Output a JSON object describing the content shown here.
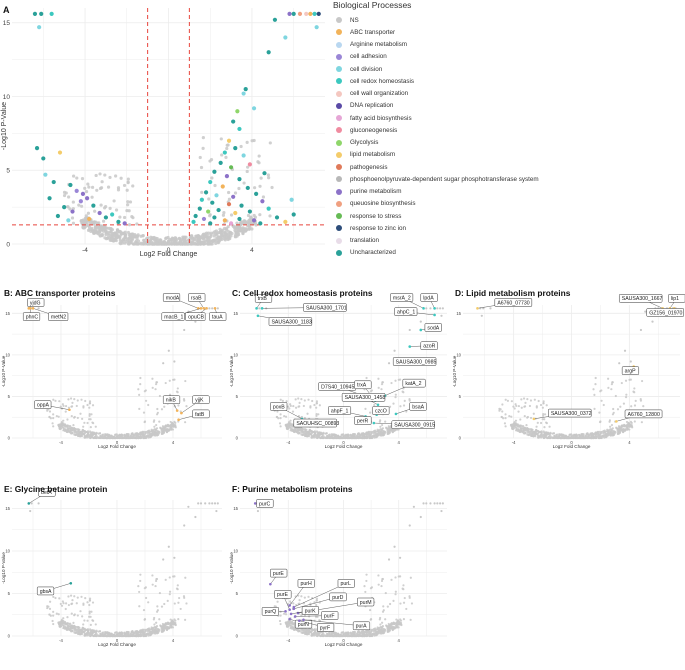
{
  "legend": {
    "title": "Biological Processes",
    "items": [
      {
        "label": "NS",
        "color": "#c8c8c8"
      },
      {
        "label": "ABC transporter",
        "color": "#f2b35a"
      },
      {
        "label": "Arginine metabolism",
        "color": "#b9d7f0"
      },
      {
        "label": "cell adhesion",
        "color": "#9a86d6"
      },
      {
        "label": "cell division",
        "color": "#7fd6e0"
      },
      {
        "label": "cell redox homeostasis",
        "color": "#3cc8bf"
      },
      {
        "label": "cell wall organization",
        "color": "#f4c7c0"
      },
      {
        "label": "DNA replication",
        "color": "#5a4aa6"
      },
      {
        "label": "fatty acid biosynthesis",
        "color": "#e6a6d6"
      },
      {
        "label": "gluconeogenesis",
        "color": "#f08ba0"
      },
      {
        "label": "Glycolysis",
        "color": "#8fd66a"
      },
      {
        "label": "lipid metabolism",
        "color": "#f4cc6a"
      },
      {
        "label": "pathogenesis",
        "color": "#e07a5a"
      },
      {
        "label": "phosphoenolpyruvate-dependent sugar phosphotransferase system",
        "color": "#b8b8b8"
      },
      {
        "label": "purine metabolism",
        "color": "#8c72c8"
      },
      {
        "label": "queuosine biosynthesis",
        "color": "#f0a080"
      },
      {
        "label": "response to stress",
        "color": "#66bb55"
      },
      {
        "label": "response to zinc ion",
        "color": "#2d4d7a"
      },
      {
        "label": "translation",
        "color": "#e8dce8"
      },
      {
        "label": "Uncharacterized",
        "color": "#2aa199"
      }
    ]
  },
  "chart_data": [
    {
      "id": "A",
      "panel_label": "A",
      "type": "scatter",
      "title": "",
      "xlabel": "Log2 Fold Change",
      "ylabel": "-Log10 P-Value",
      "xticks": [
        -4,
        0,
        4
      ],
      "yticks": [
        0,
        5,
        10,
        15
      ],
      "xlim": [
        -7.5,
        7.5
      ],
      "ylim": [
        0,
        16
      ],
      "threshold_x": [
        -1,
        1
      ],
      "threshold_y": 1.3,
      "highlighted": [
        {
          "x": -6.4,
          "y": 15.6,
          "color": "#2aa199"
        },
        {
          "x": -6.2,
          "y": 14.7,
          "color": "#7fd6e0"
        },
        {
          "x": -6.1,
          "y": 15.6,
          "color": "#2aa199"
        },
        {
          "x": -5.6,
          "y": 15.6,
          "color": "#3cc8bf"
        },
        {
          "x": -6.3,
          "y": 6.5,
          "color": "#2aa199"
        },
        {
          "x": -6.0,
          "y": 5.8,
          "color": "#2aa199"
        },
        {
          "x": -5.2,
          "y": 6.2,
          "color": "#f4cc6a"
        },
        {
          "x": -5.9,
          "y": 4.7,
          "color": "#7fd6e0"
        },
        {
          "x": -5.5,
          "y": 4.2,
          "color": "#2aa199"
        },
        {
          "x": -4.7,
          "y": 4.0,
          "color": "#2aa199"
        },
        {
          "x": -4.4,
          "y": 3.6,
          "color": "#9a86d6"
        },
        {
          "x": -4.1,
          "y": 3.4,
          "color": "#8c72c8"
        },
        {
          "x": -3.9,
          "y": 3.1,
          "color": "#8c72c8"
        },
        {
          "x": -4.2,
          "y": 2.9,
          "color": "#9a86d6"
        },
        {
          "x": -5.7,
          "y": 3.1,
          "color": "#2aa199"
        },
        {
          "x": -5.0,
          "y": 2.5,
          "color": "#2aa199"
        },
        {
          "x": -4.6,
          "y": 2.2,
          "color": "#8c72c8"
        },
        {
          "x": -3.6,
          "y": 2.6,
          "color": "#2aa199"
        },
        {
          "x": -3.3,
          "y": 2.1,
          "color": "#8c72c8"
        },
        {
          "x": -3.0,
          "y": 1.8,
          "color": "#2aa199"
        },
        {
          "x": -2.7,
          "y": 2.0,
          "color": "#3cc8bf"
        },
        {
          "x": -4.8,
          "y": 1.6,
          "color": "#7fd6e0"
        },
        {
          "x": -3.8,
          "y": 1.7,
          "color": "#f2b35a"
        },
        {
          "x": -2.4,
          "y": 1.5,
          "color": "#2aa199"
        },
        {
          "x": -2.1,
          "y": 1.4,
          "color": "#8c72c8"
        },
        {
          "x": -5.3,
          "y": 1.9,
          "color": "#2aa199"
        },
        {
          "x": 5.8,
          "y": 15.6,
          "color": "#8c72c8"
        },
        {
          "x": 6.0,
          "y": 15.6,
          "color": "#2aa199"
        },
        {
          "x": 6.3,
          "y": 15.6,
          "color": "#f0a080"
        },
        {
          "x": 6.6,
          "y": 15.6,
          "color": "#f4c7c0"
        },
        {
          "x": 6.8,
          "y": 15.6,
          "color": "#f2b35a"
        },
        {
          "x": 7.0,
          "y": 15.6,
          "color": "#3cc8bf"
        },
        {
          "x": 7.2,
          "y": 15.6,
          "color": "#2d4d7a"
        },
        {
          "x": 7.1,
          "y": 14.7,
          "color": "#7fd6e0"
        },
        {
          "x": 5.1,
          "y": 15.2,
          "color": "#2aa199"
        },
        {
          "x": 5.6,
          "y": 14.0,
          "color": "#7fd6e0"
        },
        {
          "x": 4.8,
          "y": 13.0,
          "color": "#2aa199"
        },
        {
          "x": 3.7,
          "y": 10.5,
          "color": "#2aa199"
        },
        {
          "x": 3.6,
          "y": 10.2,
          "color": "#7fd6e0"
        },
        {
          "x": 4.1,
          "y": 9.2,
          "color": "#7fd6e0"
        },
        {
          "x": 3.3,
          "y": 9.0,
          "color": "#8fd66a"
        },
        {
          "x": 3.1,
          "y": 8.3,
          "color": "#2aa199"
        },
        {
          "x": 3.4,
          "y": 7.8,
          "color": "#3cc8bf"
        },
        {
          "x": 2.9,
          "y": 7.0,
          "color": "#f4cc6a"
        },
        {
          "x": 3.2,
          "y": 6.5,
          "color": "#2aa199"
        },
        {
          "x": 2.7,
          "y": 6.2,
          "color": "#3cc8bf"
        },
        {
          "x": 3.6,
          "y": 6.0,
          "color": "#7fd6e0"
        },
        {
          "x": 2.5,
          "y": 5.5,
          "color": "#2aa199"
        },
        {
          "x": 3.0,
          "y": 5.2,
          "color": "#66bb55"
        },
        {
          "x": 2.2,
          "y": 4.9,
          "color": "#2aa199"
        },
        {
          "x": 2.8,
          "y": 4.6,
          "color": "#8c72c8"
        },
        {
          "x": 3.4,
          "y": 4.4,
          "color": "#2aa199"
        },
        {
          "x": 2.0,
          "y": 4.2,
          "color": "#3cc8bf"
        },
        {
          "x": 2.6,
          "y": 3.9,
          "color": "#f2b35a"
        },
        {
          "x": 3.8,
          "y": 3.8,
          "color": "#2aa199"
        },
        {
          "x": 1.8,
          "y": 3.5,
          "color": "#2aa199"
        },
        {
          "x": 2.3,
          "y": 3.3,
          "color": "#7fd6e0"
        },
        {
          "x": 3.1,
          "y": 3.2,
          "color": "#8c72c8"
        },
        {
          "x": 4.2,
          "y": 3.4,
          "color": "#2aa199"
        },
        {
          "x": 1.6,
          "y": 3.0,
          "color": "#3cc8bf"
        },
        {
          "x": 2.1,
          "y": 2.8,
          "color": "#2aa199"
        },
        {
          "x": 2.9,
          "y": 2.7,
          "color": "#e07a5a"
        },
        {
          "x": 3.5,
          "y": 2.6,
          "color": "#2aa199"
        },
        {
          "x": 4.5,
          "y": 2.9,
          "color": "#8c72c8"
        },
        {
          "x": 1.5,
          "y": 2.4,
          "color": "#2aa199"
        },
        {
          "x": 1.9,
          "y": 2.2,
          "color": "#8fd66a"
        },
        {
          "x": 2.4,
          "y": 2.3,
          "color": "#2aa199"
        },
        {
          "x": 3.2,
          "y": 2.1,
          "color": "#f4cc6a"
        },
        {
          "x": 3.9,
          "y": 2.2,
          "color": "#2aa199"
        },
        {
          "x": 4.8,
          "y": 2.4,
          "color": "#3cc8bf"
        },
        {
          "x": 1.3,
          "y": 1.9,
          "color": "#2aa199"
        },
        {
          "x": 1.7,
          "y": 1.7,
          "color": "#9a86d6"
        },
        {
          "x": 2.2,
          "y": 1.8,
          "color": "#2aa199"
        },
        {
          "x": 2.7,
          "y": 1.6,
          "color": "#f2b35a"
        },
        {
          "x": 3.4,
          "y": 1.7,
          "color": "#2aa199"
        },
        {
          "x": 4.1,
          "y": 1.6,
          "color": "#8c72c8"
        },
        {
          "x": 5.2,
          "y": 1.8,
          "color": "#2aa199"
        },
        {
          "x": 1.2,
          "y": 1.5,
          "color": "#3cc8bf"
        },
        {
          "x": 2.0,
          "y": 1.4,
          "color": "#2aa199"
        },
        {
          "x": 3.0,
          "y": 1.4,
          "color": "#e6a6d6"
        },
        {
          "x": 4.4,
          "y": 1.4,
          "color": "#2aa199"
        },
        {
          "x": 5.6,
          "y": 1.5,
          "color": "#f4cc6a"
        },
        {
          "x": 6.0,
          "y": 2.0,
          "color": "#2aa199"
        },
        {
          "x": 5.9,
          "y": 3.0,
          "color": "#7fd6e0"
        },
        {
          "x": 4.6,
          "y": 4.8,
          "color": "#2aa199"
        },
        {
          "x": 3.9,
          "y": 5.4,
          "color": "#f08ba0"
        }
      ]
    },
    {
      "id": "B",
      "type": "scatter",
      "title": "B: ABC transporter proteins",
      "xlabel": "Log2 Fold Change",
      "ylabel": "-Log10 P-Value",
      "xticks": [
        -4,
        0,
        4
      ],
      "yticks": [
        0,
        5,
        10,
        15
      ],
      "xlim": [
        -7.5,
        7.5
      ],
      "ylim": [
        0,
        16
      ],
      "point_color": "#f2b35a",
      "labels": [
        {
          "text": "yjdG",
          "x": -6.3,
          "y": 15.6,
          "lx": -6.4,
          "ly": 16.3
        },
        {
          "text": "phnC",
          "x": -6.2,
          "y": 15.6,
          "lx": -6.7,
          "ly": 14.6
        },
        {
          "text": "metN2",
          "x": -6.0,
          "y": 15.6,
          "lx": -4.9,
          "ly": 14.6
        },
        {
          "text": "modA",
          "x": 5.8,
          "y": 15.6,
          "lx": 3.3,
          "ly": 16.9
        },
        {
          "text": "rsaB",
          "x": 6.2,
          "y": 15.6,
          "lx": 5.1,
          "ly": 16.9
        },
        {
          "text": "macB_1",
          "x": 6.0,
          "y": 15.6,
          "lx": 3.2,
          "ly": 14.6
        },
        {
          "text": "opuCB",
          "x": 6.4,
          "y": 15.6,
          "lx": 4.9,
          "ly": 14.6
        },
        {
          "text": "tauA",
          "x": 7.0,
          "y": 15.6,
          "lx": 6.6,
          "ly": 14.6
        },
        {
          "text": "oppA",
          "x": -3.4,
          "y": 3.4,
          "lx": -5.9,
          "ly": 4.0
        },
        {
          "text": "nikB",
          "x": 4.3,
          "y": 3.3,
          "lx": 3.3,
          "ly": 4.6
        },
        {
          "text": "yjjK",
          "x": 4.6,
          "y": 3.0,
          "lx": 5.4,
          "ly": 4.6
        },
        {
          "text": "fatB",
          "x": 4.4,
          "y": 2.2,
          "lx": 5.4,
          "ly": 2.9
        }
      ]
    },
    {
      "id": "C",
      "type": "scatter",
      "title": "C: Cell redox homeostasis proteins",
      "xlabel": "Log2 Fold Change",
      "ylabel": "-Log10 P-Value",
      "xticks": [
        -4,
        0,
        4
      ],
      "yticks": [
        0,
        5,
        10,
        15
      ],
      "xlim": [
        -7.5,
        7.5
      ],
      "ylim": [
        0,
        16
      ],
      "point_color": "#3cc8bf",
      "labels": [
        {
          "text": "trxB",
          "x": -6.3,
          "y": 15.6,
          "lx": -6.4,
          "ly": 16.8
        },
        {
          "text": "SAUSA300_1701",
          "x": -5.9,
          "y": 15.6,
          "lx": -2.9,
          "ly": 15.7
        },
        {
          "text": "SAUSA300_1183",
          "x": -6.2,
          "y": 14.7,
          "lx": -5.4,
          "ly": 14.0
        },
        {
          "text": "msrA_2",
          "x": 5.8,
          "y": 15.6,
          "lx": 3.4,
          "ly": 16.9
        },
        {
          "text": "lpdA",
          "x": 6.6,
          "y": 15.6,
          "lx": 5.6,
          "ly": 16.9
        },
        {
          "text": "ahpC_1",
          "x": 6.6,
          "y": 14.8,
          "lx": 3.7,
          "ly": 15.2
        },
        {
          "text": "sodA",
          "x": 5.6,
          "y": 13.0,
          "lx": 5.9,
          "ly": 13.3
        },
        {
          "text": "azoR",
          "x": 4.8,
          "y": 11.0,
          "lx": 5.6,
          "ly": 11.1
        },
        {
          "text": "SAUSA300_0985",
          "x": 4.0,
          "y": 9.2,
          "lx": 3.6,
          "ly": 9.2
        },
        {
          "text": "D7S40_10945",
          "x": 1.8,
          "y": 4.9,
          "lx": -1.8,
          "ly": 6.2
        },
        {
          "text": "trxA",
          "x": 2.3,
          "y": 4.5,
          "lx": 0.8,
          "ly": 6.4
        },
        {
          "text": "katA_2",
          "x": 3.0,
          "y": 5.1,
          "lx": 4.3,
          "ly": 6.6
        },
        {
          "text": "SAUSA300_1458",
          "x": 2.5,
          "y": 4.0,
          "lx": -0.1,
          "ly": 4.9
        },
        {
          "text": "ahpF_1",
          "x": 1.6,
          "y": 2.6,
          "lx": -1.1,
          "ly": 3.3
        },
        {
          "text": "czcO",
          "x": 2.4,
          "y": 2.8,
          "lx": 2.1,
          "ly": 3.3
        },
        {
          "text": "bsaA",
          "x": 3.8,
          "y": 2.9,
          "lx": 4.8,
          "ly": 3.8
        },
        {
          "text": "poxB",
          "x": -3.0,
          "y": 2.3,
          "lx": -5.3,
          "ly": 3.8
        },
        {
          "text": "SAOUHSC_00893",
          "x": -2.7,
          "y": 2.1,
          "lx": -3.6,
          "ly": 1.8
        },
        {
          "text": "perR",
          "x": 1.3,
          "y": 1.9,
          "lx": 0.8,
          "ly": 2.1
        },
        {
          "text": "SAUSA300_0915",
          "x": 2.2,
          "y": 1.8,
          "lx": 3.5,
          "ly": 1.6
        }
      ]
    },
    {
      "id": "D",
      "type": "scatter",
      "title": "D: Lipid metabolism proteins",
      "xlabel": "Log2 Fold Change",
      "ylabel": "-Log10 P-Value",
      "xticks": [
        -4,
        0,
        4
      ],
      "yticks": [
        0,
        5,
        10,
        15
      ],
      "xlim": [
        -7.5,
        7.5
      ],
      "ylim": [
        0,
        16
      ],
      "point_color": "#f4cc6a",
      "labels": [
        {
          "text": "A6760_07730",
          "x": -6.5,
          "y": 15.6,
          "lx": -5.3,
          "ly": 16.3
        },
        {
          "text": "SAUSA300_1667",
          "x": 6.3,
          "y": 15.6,
          "lx": 3.3,
          "ly": 16.8
        },
        {
          "text": "lip1",
          "x": 6.8,
          "y": 15.6,
          "lx": 6.7,
          "ly": 16.8
        },
        {
          "text": "GZ156_01970",
          "x": 7.1,
          "y": 15.6,
          "lx": 5.2,
          "ly": 15.1
        },
        {
          "text": "argP",
          "x": 4.3,
          "y": 8.6,
          "lx": 3.5,
          "ly": 8.1
        },
        {
          "text": "SAUSA300_0372",
          "x": -2.6,
          "y": 2.3,
          "lx": -1.6,
          "ly": 3.0
        },
        {
          "text": "A6760_12800",
          "x": 3.1,
          "y": 2.0,
          "lx": 3.7,
          "ly": 2.9
        }
      ]
    },
    {
      "id": "E",
      "type": "scatter",
      "title": "E: Glycine betaine protein",
      "xlabel": "Log2 Fold Change",
      "ylabel": "-Log10 P-Value",
      "xticks": [
        -4,
        0,
        4
      ],
      "yticks": [
        0,
        5,
        10,
        15
      ],
      "xlim": [
        -7.5,
        7.5
      ],
      "ylim": [
        0,
        16
      ],
      "point_color": "#2aa199",
      "labels": [
        {
          "text": "betA",
          "x": -6.3,
          "y": 15.6,
          "lx": -5.6,
          "ly": 16.9
        },
        {
          "text": "gbsA",
          "x": -3.3,
          "y": 6.2,
          "lx": -5.7,
          "ly": 5.3
        }
      ]
    },
    {
      "id": "F",
      "type": "scatter",
      "title": "F: Purine metabolism proteins",
      "xlabel": "Log2 Fold Change",
      "ylabel": "-Log10 P-Value",
      "xticks": [
        -4,
        0,
        4
      ],
      "yticks": [
        0,
        5,
        10,
        15
      ],
      "xlim": [
        -7.5,
        7.5
      ],
      "ylim": [
        0,
        16
      ],
      "point_color": "#8c72c8",
      "labels": [
        {
          "text": "purC",
          "x": -6.4,
          "y": 15.6,
          "lx": -6.3,
          "ly": 15.6
        },
        {
          "text": "purE",
          "x": -5.3,
          "y": 6.1,
          "lx": -5.3,
          "ly": 7.4
        },
        {
          "text": "purH",
          "x": -3.9,
          "y": 3.6,
          "lx": -3.3,
          "ly": 6.2
        },
        {
          "text": "purL",
          "x": -3.6,
          "y": 3.4,
          "lx": -0.4,
          "ly": 6.2
        },
        {
          "text": "purE",
          "x": -3.9,
          "y": 3.1,
          "lx": -5.0,
          "ly": 4.9
        },
        {
          "text": "purD",
          "x": -3.6,
          "y": 3.2,
          "lx": -1.0,
          "ly": 4.6
        },
        {
          "text": "purM",
          "x": -3.3,
          "y": 2.7,
          "lx": 1.0,
          "ly": 4.0
        },
        {
          "text": "purQ",
          "x": -4.2,
          "y": 2.9,
          "lx": -5.9,
          "ly": 2.9
        },
        {
          "text": "purK",
          "x": -3.8,
          "y": 2.6,
          "lx": -3.0,
          "ly": 3.0
        },
        {
          "text": "purF",
          "x": -3.5,
          "y": 2.3,
          "lx": -1.6,
          "ly": 2.4
        },
        {
          "text": "purN",
          "x": -3.9,
          "y": 2.0,
          "lx": -3.5,
          "ly": 1.4
        },
        {
          "text": "pyrF",
          "x": -3.2,
          "y": 1.8,
          "lx": -1.9,
          "ly": 1.0
        },
        {
          "text": "purA",
          "x": -2.9,
          "y": 1.9,
          "lx": 0.7,
          "ly": 1.2
        }
      ]
    }
  ]
}
